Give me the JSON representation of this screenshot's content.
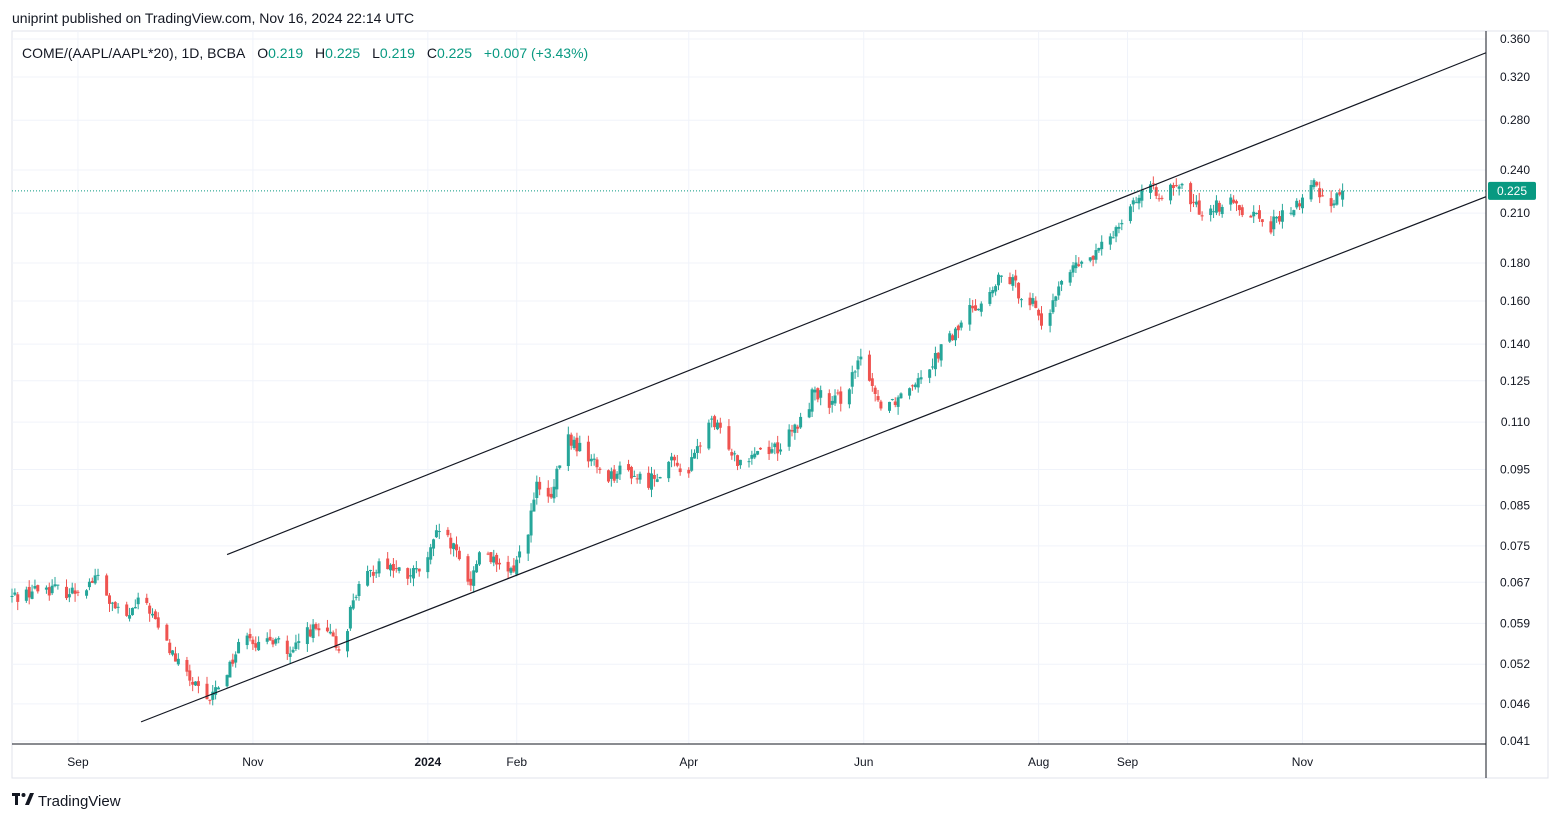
{
  "header": {
    "published_line": "uniprint published on TradingView.com, Nov 16, 2024 22:14 UTC"
  },
  "legend": {
    "symbol": "COME/(AAPL/AAPL*20), 1D, BCBA",
    "o_label": "O",
    "o_value": "0.219",
    "h_label": "H",
    "h_value": "0.225",
    "l_label": "L",
    "l_value": "0.219",
    "c_label": "C",
    "c_value": "0.225",
    "change": "+0.007 (+3.43%)"
  },
  "footer": {
    "brand": "TradingView",
    "logo_icon": "tradingview-logo-icon"
  },
  "colors": {
    "up": "#26a69a",
    "down": "#ef5350",
    "grid": "#f0f3fa",
    "axis": "#131722",
    "price_line": "#089981",
    "price_label_bg": "#089981"
  },
  "chart_data": {
    "type": "candlestick",
    "price_scale": "log",
    "ylim": [
      0.041,
      0.36
    ],
    "x_range": [
      "2023-08-09",
      "2025-01-04"
    ],
    "y_ticks": [
      "0.360",
      "0.320",
      "0.280",
      "0.240",
      "0.210",
      "0.180",
      "0.160",
      "0.140",
      "0.125",
      "0.110",
      "0.095",
      "0.085",
      "0.075",
      "0.067",
      "0.059",
      "0.052",
      "0.046",
      "0.041"
    ],
    "x_ticks": [
      {
        "label": "Sep",
        "date": "2023-09-01",
        "bold": false
      },
      {
        "label": "Nov",
        "date": "2023-11-01",
        "bold": false
      },
      {
        "label": "2024",
        "date": "2024-01-01",
        "bold": true
      },
      {
        "label": "Feb",
        "date": "2024-02-01",
        "bold": false
      },
      {
        "label": "Apr",
        "date": "2024-04-01",
        "bold": false
      },
      {
        "label": "Jun",
        "date": "2024-06-01",
        "bold": false
      },
      {
        "label": "Aug",
        "date": "2024-08-01",
        "bold": false
      },
      {
        "label": "Sep",
        "date": "2024-09-01",
        "bold": false
      },
      {
        "label": "Nov",
        "date": "2024-11-01",
        "bold": false
      }
    ],
    "last_price": "0.225",
    "channel_lines": [
      {
        "name": "upper",
        "from": {
          "date": "2023-10-23",
          "value": 0.073
        },
        "to": {
          "date": "2025-01-04",
          "value": 0.345
        }
      },
      {
        "name": "lower",
        "from": {
          "date": "2023-09-23",
          "value": 0.0435
        },
        "to": {
          "date": "2025-01-04",
          "value": 0.221
        }
      }
    ],
    "close_path": [
      [
        "2023-08-09",
        0.064
      ],
      [
        "2023-08-20",
        0.066
      ],
      [
        "2023-08-30",
        0.065
      ],
      [
        "2023-09-08",
        0.068
      ],
      [
        "2023-09-13",
        0.062
      ],
      [
        "2023-09-18",
        0.06
      ],
      [
        "2023-09-24",
        0.064
      ],
      [
        "2023-09-30",
        0.057
      ],
      [
        "2023-10-06",
        0.052
      ],
      [
        "2023-10-11",
        0.049
      ],
      [
        "2023-10-16",
        0.046
      ],
      [
        "2023-10-23",
        0.051
      ],
      [
        "2023-10-30",
        0.058
      ],
      [
        "2023-11-04",
        0.054
      ],
      [
        "2023-11-09",
        0.057
      ],
      [
        "2023-11-14",
        0.053
      ],
      [
        "2023-11-20",
        0.058
      ],
      [
        "2023-11-27",
        0.057
      ],
      [
        "2023-12-02",
        0.054
      ],
      [
        "2023-12-06",
        0.064
      ],
      [
        "2023-12-11",
        0.068
      ],
      [
        "2023-12-16",
        0.072
      ],
      [
        "2023-12-24",
        0.068
      ],
      [
        "2023-12-31",
        0.07
      ],
      [
        "2024-01-05",
        0.079
      ],
      [
        "2024-01-11",
        0.073
      ],
      [
        "2024-01-16",
        0.067
      ],
      [
        "2024-01-20",
        0.076
      ],
      [
        "2024-01-25",
        0.07
      ],
      [
        "2024-01-30",
        0.069
      ],
      [
        "2024-02-04",
        0.076
      ],
      [
        "2024-02-08",
        0.09
      ],
      [
        "2024-02-13",
        0.086
      ],
      [
        "2024-02-18",
        0.105
      ],
      [
        "2024-02-25",
        0.1
      ],
      [
        "2024-03-03",
        0.093
      ],
      [
        "2024-03-10",
        0.095
      ],
      [
        "2024-03-17",
        0.091
      ],
      [
        "2024-03-25",
        0.097
      ],
      [
        "2024-04-01",
        0.095
      ],
      [
        "2024-04-08",
        0.11
      ],
      [
        "2024-04-13",
        0.106
      ],
      [
        "2024-04-18",
        0.098
      ],
      [
        "2024-04-25",
        0.101
      ],
      [
        "2024-05-03",
        0.102
      ],
      [
        "2024-05-10",
        0.11
      ],
      [
        "2024-05-15",
        0.122
      ],
      [
        "2024-05-20",
        0.115
      ],
      [
        "2024-05-25",
        0.12
      ],
      [
        "2024-06-01",
        0.135
      ],
      [
        "2024-06-06",
        0.117
      ],
      [
        "2024-06-12",
        0.118
      ],
      [
        "2024-06-18",
        0.125
      ],
      [
        "2024-06-23",
        0.13
      ],
      [
        "2024-06-28",
        0.138
      ],
      [
        "2024-07-03",
        0.145
      ],
      [
        "2024-07-09",
        0.158
      ],
      [
        "2024-07-14",
        0.16
      ],
      [
        "2024-07-20",
        0.175
      ],
      [
        "2024-07-25",
        0.165
      ],
      [
        "2024-07-30",
        0.16
      ],
      [
        "2024-08-04",
        0.145
      ],
      [
        "2024-08-08",
        0.17
      ],
      [
        "2024-08-14",
        0.178
      ],
      [
        "2024-08-20",
        0.183
      ],
      [
        "2024-08-26",
        0.195
      ],
      [
        "2024-09-01",
        0.215
      ],
      [
        "2024-09-07",
        0.225
      ],
      [
        "2024-09-14",
        0.224
      ],
      [
        "2024-09-20",
        0.226
      ],
      [
        "2024-09-26",
        0.212
      ],
      [
        "2024-10-02",
        0.215
      ],
      [
        "2024-10-08",
        0.216
      ],
      [
        "2024-10-15",
        0.21
      ],
      [
        "2024-10-21",
        0.202
      ],
      [
        "2024-10-26",
        0.21
      ],
      [
        "2024-10-31",
        0.216
      ],
      [
        "2024-11-05",
        0.23
      ],
      [
        "2024-11-10",
        0.216
      ],
      [
        "2024-11-15",
        0.225
      ]
    ]
  }
}
